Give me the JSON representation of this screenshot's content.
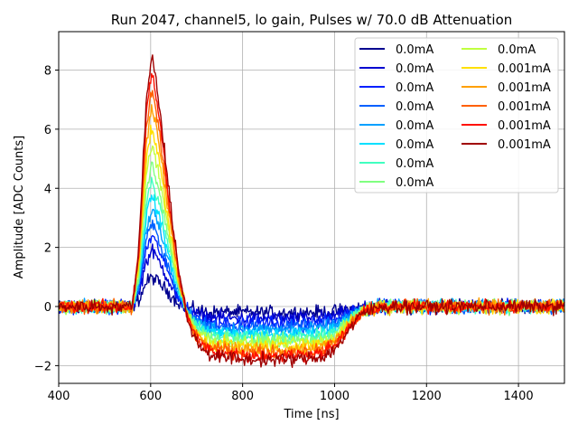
{
  "chart_data": {
    "type": "line",
    "title": "Run 2047, channel5, lo gain, Pulses w/ 70.0 dB Attenuation",
    "xlabel": "Time [ns]",
    "ylabel": "Amplitude [ADC Counts]",
    "xlim": [
      400,
      1500
    ],
    "ylim": [
      -2.6,
      9.3
    ],
    "xticks": [
      400,
      600,
      800,
      1000,
      1200,
      1400
    ],
    "yticks": [
      -2,
      0,
      2,
      4,
      6,
      8
    ],
    "xtick_labels": [
      "400",
      "600",
      "800",
      "1000",
      "1200",
      "1400"
    ],
    "ytick_labels": [
      "−2",
      "0",
      "2",
      "4",
      "6",
      "8"
    ],
    "grid": true,
    "legend_position": "top-right",
    "legend_columns": 2,
    "pulse_shape_points_ns": [
      [
        400,
        0
      ],
      [
        560,
        0
      ],
      [
        575,
        0.25
      ],
      [
        590,
        0.8
      ],
      [
        603,
        1.0
      ],
      [
        620,
        0.78
      ],
      [
        640,
        0.45
      ],
      [
        660,
        0.15
      ],
      [
        680,
        -0.05
      ],
      [
        700,
        -0.15
      ],
      [
        730,
        -0.2
      ],
      [
        800,
        -0.22
      ],
      [
        900,
        -0.22
      ],
      [
        970,
        -0.21
      ],
      [
        1000,
        -0.18
      ],
      [
        1030,
        -0.1
      ],
      [
        1060,
        -0.03
      ],
      [
        1100,
        0
      ],
      [
        1500,
        0
      ]
    ],
    "series": [
      {
        "name": "0.0mA",
        "color": "#00008f",
        "peak": 1.0,
        "undershoot": 0.2
      },
      {
        "name": "0.0mA",
        "color": "#0000d0",
        "peak": 1.9,
        "undershoot": 0.4
      },
      {
        "name": "0.0mA",
        "color": "#0020ff",
        "peak": 2.4,
        "undershoot": 0.55
      },
      {
        "name": "0.0mA",
        "color": "#0060ff",
        "peak": 2.8,
        "undershoot": 0.7
      },
      {
        "name": "0.0mA",
        "color": "#00a0ff",
        "peak": 3.3,
        "undershoot": 0.8
      },
      {
        "name": "0.0mA",
        "color": "#00e0ff",
        "peak": 3.8,
        "undershoot": 0.95
      },
      {
        "name": "0.0mA",
        "color": "#40ffc0",
        "peak": 4.3,
        "undershoot": 1.05
      },
      {
        "name": "0.0mA",
        "color": "#80ff80",
        "peak": 4.9,
        "undershoot": 1.15
      },
      {
        "name": "0.0mA",
        "color": "#c0ff40",
        "peak": 5.5,
        "undershoot": 1.25
      },
      {
        "name": "0.001mA",
        "color": "#ffe000",
        "peak": 6.1,
        "undershoot": 1.35
      },
      {
        "name": "0.001mA",
        "color": "#ffa000",
        "peak": 6.8,
        "undershoot": 1.45
      },
      {
        "name": "0.001mA",
        "color": "#ff6000",
        "peak": 7.4,
        "undershoot": 1.55
      },
      {
        "name": "0.001mA",
        "color": "#ff1000",
        "peak": 8.0,
        "undershoot": 1.65
      },
      {
        "name": "0.001mA",
        "color": "#a00000",
        "peak": 8.6,
        "undershoot": 1.8
      }
    ]
  }
}
